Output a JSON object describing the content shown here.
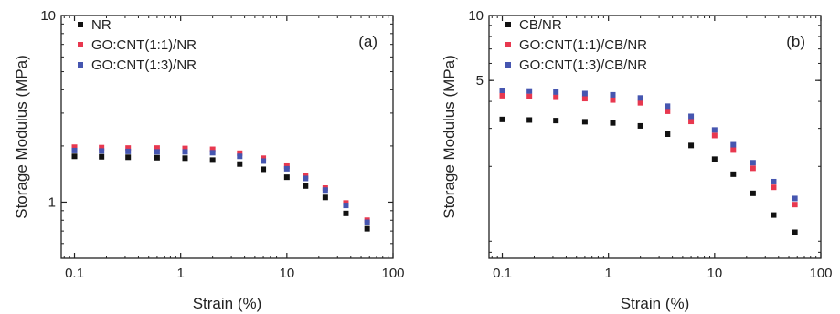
{
  "chart_data": [
    {
      "type": "scatter",
      "panel_label": "(a)",
      "xlabel": "Strain (%)",
      "ylabel": "Storage Modulus (MPa)",
      "xscale": "log",
      "yscale": "log",
      "xlim": [
        0.075,
        100
      ],
      "ylim": [
        0.5,
        10
      ],
      "x_ticks": [
        {
          "v": 0.1,
          "label": "0.1"
        },
        {
          "v": 1,
          "label": "1"
        },
        {
          "v": 10,
          "label": "10"
        },
        {
          "v": 100,
          "label": "100"
        }
      ],
      "y_ticks": [
        {
          "v": 1,
          "label": "1"
        },
        {
          "v": 10,
          "label": "10"
        }
      ],
      "legend_position": "top-left",
      "x": [
        0.1,
        0.18,
        0.32,
        0.6,
        1.1,
        2.0,
        3.6,
        6.0,
        10,
        15,
        23,
        36,
        57
      ],
      "series": [
        {
          "name": "NR",
          "color": "#111111",
          "values": [
            1.76,
            1.75,
            1.74,
            1.73,
            1.72,
            1.68,
            1.6,
            1.5,
            1.36,
            1.22,
            1.06,
            0.87,
            0.72
          ]
        },
        {
          "name": "GO:CNT(1:1)/NR",
          "color": "#e8384f",
          "values": [
            1.97,
            1.96,
            1.95,
            1.95,
            1.94,
            1.92,
            1.83,
            1.72,
            1.56,
            1.38,
            1.19,
            0.99,
            0.8
          ]
        },
        {
          "name": "GO:CNT(1:3)/NR",
          "color": "#4656b0",
          "values": [
            1.89,
            1.88,
            1.87,
            1.86,
            1.86,
            1.84,
            1.76,
            1.66,
            1.51,
            1.34,
            1.16,
            0.96,
            0.78
          ]
        }
      ]
    },
    {
      "type": "scatter",
      "panel_label": "(b)",
      "xlabel": "Strain (%)",
      "ylabel": "Storage Modulus (MPa)",
      "xscale": "log",
      "yscale": "log",
      "xlim": [
        0.075,
        100
      ],
      "ylim": [
        0.75,
        10
      ],
      "x_ticks": [
        {
          "v": 0.1,
          "label": "0.1"
        },
        {
          "v": 1,
          "label": "1"
        },
        {
          "v": 10,
          "label": "10"
        },
        {
          "v": 100,
          "label": "100"
        }
      ],
      "y_ticks": [
        {
          "v": 5,
          "label": "5"
        },
        {
          "v": 10,
          "label": "10"
        }
      ],
      "legend_position": "top-left",
      "x": [
        0.1,
        0.18,
        0.32,
        0.6,
        1.1,
        2.0,
        3.6,
        6.0,
        10,
        15,
        23,
        36,
        57
      ],
      "series": [
        {
          "name": "CB/NR",
          "color": "#111111",
          "values": [
            3.3,
            3.28,
            3.26,
            3.22,
            3.18,
            3.08,
            2.82,
            2.5,
            2.16,
            1.84,
            1.5,
            1.19,
            0.99
          ]
        },
        {
          "name": "GO:CNT(1:1)/CB/NR",
          "color": "#e8384f",
          "values": [
            4.25,
            4.22,
            4.18,
            4.12,
            4.06,
            3.94,
            3.6,
            3.23,
            2.78,
            2.38,
            1.96,
            1.6,
            1.33
          ]
        },
        {
          "name": "GO:CNT(1:3)/CB/NR",
          "color": "#4656b0",
          "values": [
            4.5,
            4.47,
            4.42,
            4.35,
            4.29,
            4.15,
            3.8,
            3.41,
            2.95,
            2.52,
            2.08,
            1.7,
            1.42
          ]
        }
      ]
    }
  ]
}
